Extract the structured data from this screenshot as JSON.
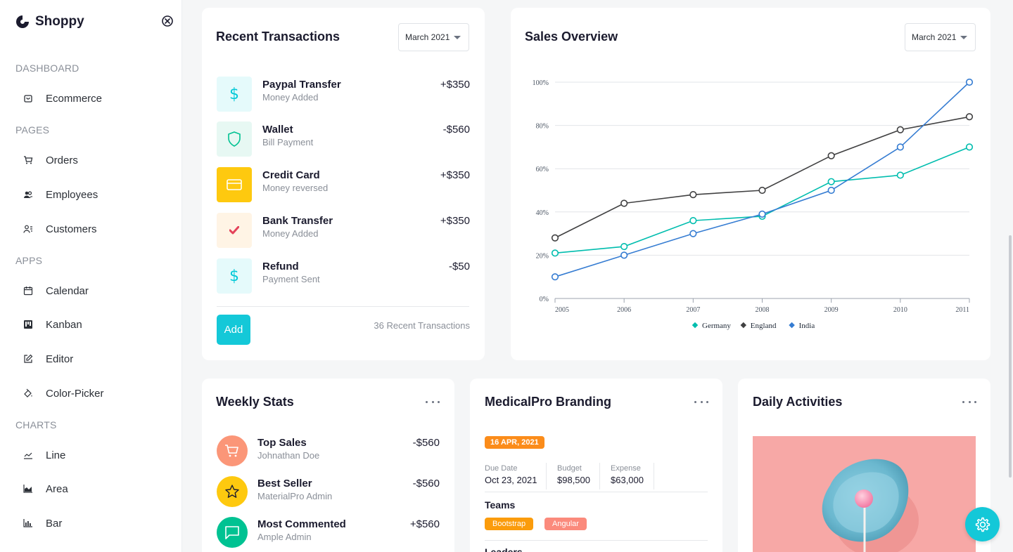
{
  "app": {
    "name": "Shoppy"
  },
  "sidebar": {
    "sections": [
      {
        "label": "DASHBOARD",
        "items": [
          {
            "label": "Ecommerce",
            "icon": "shopping-bag-icon"
          }
        ]
      },
      {
        "label": "PAGES",
        "items": [
          {
            "label": "Orders",
            "icon": "cart-icon"
          },
          {
            "label": "Employees",
            "icon": "employees-icon"
          },
          {
            "label": "Customers",
            "icon": "customers-icon"
          }
        ]
      },
      {
        "label": "APPS",
        "items": [
          {
            "label": "Calendar",
            "icon": "calendar-icon"
          },
          {
            "label": "Kanban",
            "icon": "kanban-icon"
          },
          {
            "label": "Editor",
            "icon": "editor-icon"
          },
          {
            "label": "Color-Picker",
            "icon": "color-picker-icon"
          }
        ]
      },
      {
        "label": "CHARTS",
        "items": [
          {
            "label": "Line",
            "icon": "line-chart-icon"
          },
          {
            "label": "Area",
            "icon": "area-chart-icon"
          },
          {
            "label": "Bar",
            "icon": "bar-chart-icon"
          }
        ]
      }
    ]
  },
  "transactions": {
    "title": "Recent Transactions",
    "period": "March 2021",
    "items": [
      {
        "title": "Paypal Transfer",
        "subtitle": "Money Added",
        "amount": "+$350",
        "icon": "dollar-icon",
        "icon_color": "#03c9d7",
        "icon_bg": "#e5fafb"
      },
      {
        "title": "Wallet",
        "subtitle": "Bill Payment",
        "amount": "-$560",
        "icon": "shield-icon",
        "icon_color": "#00c292",
        "icon_bg": "#e7f8f3"
      },
      {
        "title": "Credit Card",
        "subtitle": "Money reversed",
        "amount": "+$350",
        "icon": "credit-card-icon",
        "icon_color": "#ffffff",
        "icon_bg": "#fec90f"
      },
      {
        "title": "Bank Transfer",
        "subtitle": "Money Added",
        "amount": "+$350",
        "icon": "check-icon",
        "icon_color": "#e4425a",
        "icon_bg": "#fff4e5"
      },
      {
        "title": "Refund",
        "subtitle": "Payment Sent",
        "amount": "-$50",
        "icon": "dollar-icon",
        "icon_color": "#03c9d7",
        "icon_bg": "#e5fafb"
      }
    ],
    "add_label": "Add",
    "count_label": "36 Recent Transactions"
  },
  "sales": {
    "title": "Sales Overview",
    "period": "March 2021"
  },
  "chart_data": {
    "type": "line",
    "title": "Sales Overview",
    "x": [
      "2005",
      "2006",
      "2007",
      "2008",
      "2009",
      "2010",
      "2011"
    ],
    "ylim": [
      0,
      100
    ],
    "yticks": [
      "0%",
      "20%",
      "40%",
      "60%",
      "80%",
      "100%"
    ],
    "ytick_values": [
      0,
      20,
      40,
      60,
      80,
      100
    ],
    "grid": true,
    "legend": "bottom",
    "series": [
      {
        "name": "Germany",
        "color": "#00bdae",
        "values": [
          21,
          24,
          36,
          38,
          54,
          57,
          70
        ]
      },
      {
        "name": "England",
        "color": "#404041",
        "values": [
          28,
          44,
          48,
          50,
          66,
          78,
          84
        ]
      },
      {
        "name": "India",
        "color": "#357cd2",
        "values": [
          10,
          20,
          30,
          39,
          50,
          70,
          100
        ]
      }
    ]
  },
  "weekly": {
    "title": "Weekly Stats",
    "items": [
      {
        "title": "Top Sales",
        "subtitle": "Johnathan Doe",
        "amount": "-$560",
        "icon": "cart-icon",
        "bg": "#fb9678"
      },
      {
        "title": "Best Seller",
        "subtitle": "MaterialPro Admin",
        "amount": "-$560",
        "icon": "star-icon",
        "bg": "#fec90f"
      },
      {
        "title": "Most Commented",
        "subtitle": "Ample Admin",
        "amount": "+$560",
        "icon": "chat-icon",
        "bg": "#00c292"
      }
    ]
  },
  "medical": {
    "title": "MedicalPro Branding",
    "date_badge": "16 APR, 2021",
    "due_label": "Due Date",
    "due_value": "Oct 23, 2021",
    "budget_label": "Budget",
    "budget_value": "$98,500",
    "expense_label": "Expense",
    "expense_value": "$63,000",
    "teams_label": "Teams",
    "teams": [
      {
        "label": "Bootstrap",
        "color": "#fb9c0c"
      },
      {
        "label": "Angular",
        "color": "#fb8a7c"
      }
    ],
    "leaders_label": "Leaders"
  },
  "daily": {
    "title": "Daily Activities"
  },
  "colors": {
    "accent": "#14c8d8",
    "date_badge": "#fb8c1a"
  }
}
